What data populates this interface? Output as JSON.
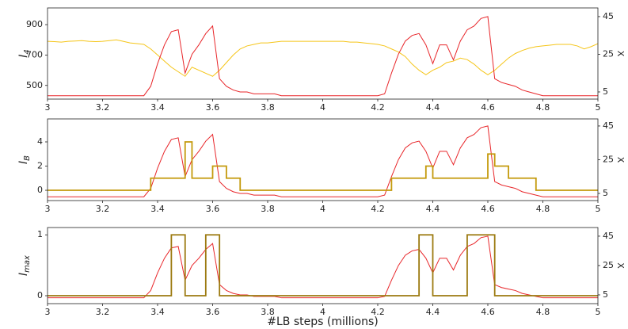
{
  "chart_data": [
    {
      "type": "line",
      "ylabel": "I",
      "ylabel_subscript": "4",
      "y2label": "X",
      "x": [
        3,
        3.025,
        3.05,
        3.075,
        3.1,
        3.125,
        3.15,
        3.175,
        3.2,
        3.225,
        3.25,
        3.275,
        3.3,
        3.325,
        3.35,
        3.375,
        3.4,
        3.425,
        3.45,
        3.475,
        3.5,
        3.525,
        3.55,
        3.575,
        3.6,
        3.625,
        3.65,
        3.675,
        3.7,
        3.725,
        3.75,
        3.775,
        3.8,
        3.825,
        3.85,
        3.875,
        3.9,
        3.925,
        3.95,
        3.975,
        4,
        4.025,
        4.05,
        4.075,
        4.1,
        4.125,
        4.15,
        4.175,
        4.2,
        4.225,
        4.25,
        4.275,
        4.3,
        4.325,
        4.35,
        4.375,
        4.4,
        4.425,
        4.45,
        4.475,
        4.5,
        4.525,
        4.55,
        4.575,
        4.6,
        4.625,
        4.65,
        4.675,
        4.7,
        4.725,
        4.75,
        4.775,
        4.8,
        4.825,
        4.85,
        4.875,
        4.9,
        4.925,
        4.95,
        4.975,
        5
      ],
      "series": [
        {
          "color": "#f5c518",
          "values": [
            790,
            788,
            785,
            790,
            792,
            795,
            790,
            788,
            790,
            795,
            800,
            790,
            780,
            775,
            770,
            740,
            700,
            660,
            620,
            590,
            560,
            620,
            600,
            580,
            560,
            600,
            650,
            700,
            740,
            760,
            770,
            780,
            780,
            785,
            790,
            790,
            790,
            790,
            790,
            790,
            790,
            790,
            790,
            790,
            785,
            785,
            780,
            775,
            770,
            760,
            740,
            720,
            690,
            640,
            600,
            570,
            600,
            620,
            650,
            660,
            680,
            670,
            640,
            600,
            570,
            600,
            640,
            680,
            710,
            730,
            745,
            755,
            760,
            765,
            770,
            770,
            770,
            760,
            740,
            755,
            775
          ]
        },
        {
          "color": "#e8262a",
          "axis": "y2",
          "values": [
            3,
            3,
            3,
            3,
            3,
            3,
            3,
            3,
            3,
            3,
            3,
            3,
            3,
            3,
            3,
            8,
            20,
            30,
            37,
            38,
            15,
            25,
            30,
            36,
            40,
            12,
            8,
            6,
            5,
            5,
            4,
            4,
            4,
            4,
            3,
            3,
            3,
            3,
            3,
            3,
            3,
            3,
            3,
            3,
            3,
            3,
            3,
            3,
            3,
            4,
            15,
            25,
            32,
            35,
            36,
            30,
            20,
            30,
            30,
            22,
            32,
            38,
            40,
            44,
            45,
            12,
            10,
            9,
            8,
            6,
            5,
            4,
            3,
            3,
            3,
            3,
            3,
            3,
            3,
            3,
            3
          ]
        }
      ],
      "xlim": [
        3,
        5
      ],
      "xticks": [
        3,
        3.2,
        3.4,
        3.6,
        3.8,
        4,
        4.2,
        4.4,
        4.6,
        4.8,
        5
      ],
      "ylim": [
        410,
        1010
      ],
      "yticks": [
        500,
        700,
        900
      ],
      "y2lim": [
        1.2,
        49.6
      ],
      "y2ticks": [
        5,
        25,
        45
      ]
    },
    {
      "type": "line",
      "ylabel": "I",
      "ylabel_subscript": "B",
      "y2label": "X",
      "x": [
        3,
        3.025,
        3.05,
        3.075,
        3.1,
        3.125,
        3.15,
        3.175,
        3.2,
        3.225,
        3.25,
        3.275,
        3.3,
        3.325,
        3.35,
        3.375,
        3.4,
        3.425,
        3.45,
        3.475,
        3.5,
        3.525,
        3.55,
        3.575,
        3.6,
        3.625,
        3.65,
        3.675,
        3.7,
        3.725,
        3.75,
        3.775,
        3.8,
        3.825,
        3.85,
        3.875,
        3.9,
        3.925,
        3.95,
        3.975,
        4,
        4.025,
        4.05,
        4.075,
        4.1,
        4.125,
        4.15,
        4.175,
        4.2,
        4.225,
        4.25,
        4.275,
        4.3,
        4.325,
        4.35,
        4.375,
        4.4,
        4.425,
        4.45,
        4.475,
        4.5,
        4.525,
        4.55,
        4.575,
        4.6,
        4.625,
        4.65,
        4.675,
        4.7,
        4.725,
        4.75,
        4.775,
        4.8,
        4.825,
        4.85,
        4.875,
        4.9,
        4.925,
        4.95,
        4.975,
        5
      ],
      "series": [
        {
          "color": "#e8262a",
          "axis": "y2",
          "values": [
            3,
            3,
            3,
            3,
            3,
            3,
            3,
            3,
            3,
            3,
            3,
            3,
            3,
            3,
            3,
            8,
            20,
            30,
            37,
            38,
            15,
            25,
            30,
            36,
            40,
            12,
            8,
            6,
            5,
            5,
            4,
            4,
            4,
            4,
            3,
            3,
            3,
            3,
            3,
            3,
            3,
            3,
            3,
            3,
            3,
            3,
            3,
            3,
            3,
            4,
            15,
            25,
            32,
            35,
            36,
            30,
            20,
            30,
            30,
            22,
            32,
            38,
            40,
            44,
            45,
            12,
            10,
            9,
            8,
            6,
            5,
            4,
            3,
            3,
            3,
            3,
            3,
            3,
            3,
            3,
            3
          ]
        },
        {
          "color": "#c49a0c",
          "step": true,
          "values": [
            0,
            0,
            0,
            0,
            0,
            0,
            0,
            0,
            0,
            0,
            0,
            0,
            0,
            0,
            0,
            1,
            1,
            1,
            1,
            1,
            4,
            1,
            1,
            1,
            2,
            2,
            1,
            1,
            0,
            0,
            0,
            0,
            0,
            0,
            0,
            0,
            0,
            0,
            0,
            0,
            0,
            0,
            0,
            0,
            0,
            0,
            0,
            0,
            0,
            0,
            1,
            1,
            1,
            1,
            1,
            2,
            1,
            1,
            1,
            1,
            1,
            1,
            1,
            1,
            3,
            2,
            2,
            1,
            1,
            1,
            1,
            0,
            0,
            0,
            0,
            0,
            0,
            0,
            0,
            0,
            0
          ]
        }
      ],
      "xlim": [
        3,
        5
      ],
      "xticks": [
        3,
        3.2,
        3.4,
        3.6,
        3.8,
        4,
        4.2,
        4.4,
        4.6,
        4.8,
        5
      ],
      "ylim": [
        -0.85,
        5.9
      ],
      "yticks": [
        0,
        2,
        4
      ],
      "y2lim": [
        0.76,
        49.2
      ],
      "y2ticks": [
        5,
        25,
        45
      ]
    },
    {
      "type": "line",
      "ylabel": "I",
      "ylabel_subscript": "max",
      "y2label": "X",
      "xlabel": "#LB steps (millions)",
      "x": [
        3,
        3.025,
        3.05,
        3.075,
        3.1,
        3.125,
        3.15,
        3.175,
        3.2,
        3.225,
        3.25,
        3.275,
        3.3,
        3.325,
        3.35,
        3.375,
        3.4,
        3.425,
        3.45,
        3.475,
        3.5,
        3.525,
        3.55,
        3.575,
        3.6,
        3.625,
        3.65,
        3.675,
        3.7,
        3.725,
        3.75,
        3.775,
        3.8,
        3.825,
        3.85,
        3.875,
        3.9,
        3.925,
        3.95,
        3.975,
        4,
        4.025,
        4.05,
        4.075,
        4.1,
        4.125,
        4.15,
        4.175,
        4.2,
        4.225,
        4.25,
        4.275,
        4.3,
        4.325,
        4.35,
        4.375,
        4.4,
        4.425,
        4.45,
        4.475,
        4.5,
        4.525,
        4.55,
        4.575,
        4.6,
        4.625,
        4.65,
        4.675,
        4.7,
        4.725,
        4.75,
        4.775,
        4.8,
        4.825,
        4.85,
        4.875,
        4.9,
        4.925,
        4.95,
        4.975,
        5
      ],
      "series": [
        {
          "color": "#e8262a",
          "axis": "y2",
          "values": [
            3,
            3,
            3,
            3,
            3,
            3,
            3,
            3,
            3,
            3,
            3,
            3,
            3,
            3,
            3,
            8,
            20,
            30,
            37,
            38,
            15,
            25,
            30,
            36,
            40,
            12,
            8,
            6,
            5,
            5,
            4,
            4,
            4,
            4,
            3,
            3,
            3,
            3,
            3,
            3,
            3,
            3,
            3,
            3,
            3,
            3,
            3,
            3,
            3,
            4,
            15,
            25,
            32,
            35,
            36,
            30,
            20,
            30,
            30,
            22,
            32,
            38,
            40,
            44,
            45,
            12,
            10,
            9,
            8,
            6,
            5,
            4,
            3,
            3,
            3,
            3,
            3,
            3,
            3,
            3,
            3
          ]
        },
        {
          "color": "#9c7a10",
          "step": true,
          "values": [
            0,
            0,
            0,
            0,
            0,
            0,
            0,
            0,
            0,
            0,
            0,
            0,
            0,
            0,
            0,
            0,
            0,
            0,
            1,
            1,
            0,
            0,
            0,
            1,
            1,
            0,
            0,
            0,
            0,
            0,
            0,
            0,
            0,
            0,
            0,
            0,
            0,
            0,
            0,
            0,
            0,
            0,
            0,
            0,
            0,
            0,
            0,
            0,
            0,
            0,
            0,
            0,
            0,
            0,
            1,
            1,
            0,
            0,
            0,
            0,
            0,
            1,
            1,
            1,
            1,
            0,
            0,
            0,
            0,
            0,
            0,
            0,
            0,
            0,
            0,
            0,
            0,
            0,
            0,
            0,
            0
          ]
        }
      ],
      "xlim": [
        3,
        5
      ],
      "xticks": [
        3,
        3.2,
        3.4,
        3.6,
        3.8,
        4,
        4.2,
        4.4,
        4.6,
        4.8,
        5
      ],
      "ylim": [
        -0.13,
        1.12
      ],
      "yticks": [
        0,
        1
      ],
      "y2lim": [
        -0.95,
        50.9
      ],
      "y2ticks": [
        5,
        25,
        45
      ]
    }
  ]
}
